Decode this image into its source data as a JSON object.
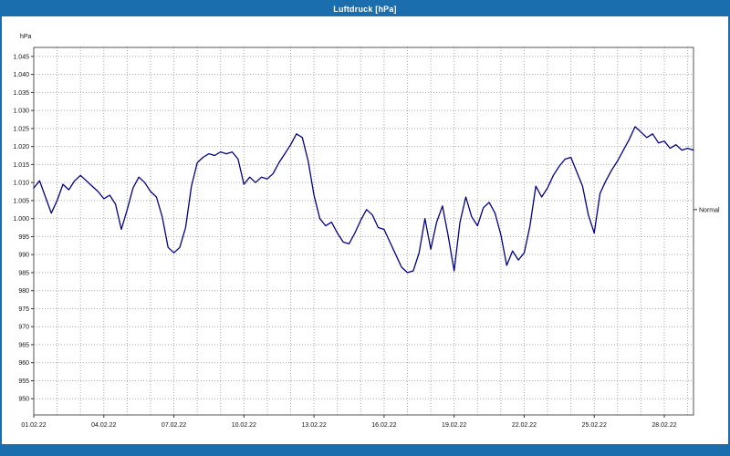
{
  "window": {
    "title": "Luftdruck [hPa]"
  },
  "colors": {
    "titlebar": "#1a6eae",
    "series_line": "#00008c",
    "gridline": "#a8a8a8"
  },
  "chart_data": {
    "type": "line",
    "title": "Luftdruck [hPa]",
    "ylabel": "hPa",
    "xlabel": "",
    "legend": "none",
    "grid": "dotted, vertical daily lines, horizontal every 5 hPa",
    "ylim": [
      945.5,
      1047.5
    ],
    "x_start_day": 0,
    "x_end_day": 28.25,
    "x_step_days": 0.25,
    "series_color": "#00008c",
    "yticks": [
      {
        "v": 1045,
        "label": "1.045"
      },
      {
        "v": 1040,
        "label": "1.040"
      },
      {
        "v": 1035,
        "label": "1.035"
      },
      {
        "v": 1030,
        "label": "1.030"
      },
      {
        "v": 1025,
        "label": "1.025"
      },
      {
        "v": 1020,
        "label": "1.020"
      },
      {
        "v": 1015,
        "label": "1.015"
      },
      {
        "v": 1010,
        "label": "1.010"
      },
      {
        "v": 1005,
        "label": "1.005"
      },
      {
        "v": 1000,
        "label": "1.000"
      },
      {
        "v": 995,
        "label": "995"
      },
      {
        "v": 990,
        "label": "990"
      },
      {
        "v": 985,
        "label": "985"
      },
      {
        "v": 980,
        "label": "980"
      },
      {
        "v": 975,
        "label": "975"
      },
      {
        "v": 970,
        "label": "970"
      },
      {
        "v": 965,
        "label": "965"
      },
      {
        "v": 960,
        "label": "960"
      },
      {
        "v": 955,
        "label": "955"
      },
      {
        "v": 950,
        "label": "950"
      }
    ],
    "xticks": [
      {
        "day": 0,
        "label": "01.02.22"
      },
      {
        "day": 3,
        "label": "04.02.22"
      },
      {
        "day": 6,
        "label": "07.02.22"
      },
      {
        "day": 9,
        "label": "10.02.22"
      },
      {
        "day": 12,
        "label": "13.02.22"
      },
      {
        "day": 15,
        "label": "16.02.22"
      },
      {
        "day": 18,
        "label": "19.02.22"
      },
      {
        "day": 21,
        "label": "22.02.22"
      },
      {
        "day": 24,
        "label": "25.02.22"
      },
      {
        "day": 27,
        "label": "28.02.22"
      }
    ],
    "normal_marker": {
      "value": 1002.5,
      "label": "Normal"
    },
    "values": [
      1008.5,
      1010.5,
      1006,
      1001.5,
      1005,
      1009.5,
      1008,
      1010.5,
      1012,
      1010.5,
      1009,
      1007.5,
      1005.5,
      1006.5,
      1004,
      997,
      1002.5,
      1008.5,
      1011.5,
      1010,
      1007.5,
      1006,
      1000.5,
      992,
      990.5,
      992,
      997.5,
      1009,
      1015.5,
      1017,
      1018,
      1017.5,
      1018.5,
      1018,
      1018.5,
      1016.5,
      1009.5,
      1011.5,
      1010,
      1011.5,
      1011,
      1012.5,
      1015.5,
      1018,
      1020.5,
      1023.5,
      1022.5,
      1016,
      1006.5,
      1000,
      998,
      999,
      996,
      993.5,
      993,
      996,
      999.5,
      1002.5,
      1001,
      997.5,
      997,
      993.5,
      990,
      986.5,
      985,
      985.5,
      990.5,
      1000,
      991.5,
      999,
      1003.5,
      995,
      985.5,
      999,
      1006,
      1000.5,
      998,
      1003,
      1004.5,
      1001.5,
      995.5,
      987,
      991,
      988.5,
      990.5,
      998,
      1009,
      1006,
      1008.5,
      1012,
      1014.5,
      1016.5,
      1017,
      1013,
      1009,
      1001,
      996,
      1007,
      1010.5,
      1013.5,
      1016,
      1019,
      1022,
      1025.5,
      1024,
      1022.5,
      1023.5,
      1021,
      1021.5,
      1019.5,
      1020.5,
      1019,
      1019.5,
      1019
    ]
  }
}
